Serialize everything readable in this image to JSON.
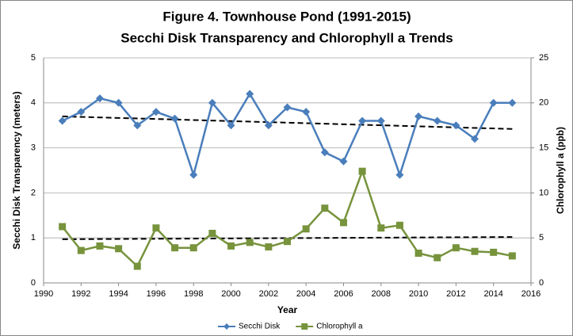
{
  "chart_data": {
    "type": "line",
    "title": [
      "Figure 4. Townhouse Pond (1991-2015)",
      "Secchi Disk Transparency and Chlorophyll a Trends"
    ],
    "x_label": "Year",
    "y_label": "Secchi Disk Transparency (meters)",
    "y2_label": "Chlorophyll a (ppb)",
    "x": [
      1991,
      1992,
      1993,
      1994,
      1995,
      1996,
      1997,
      1998,
      1999,
      2000,
      2001,
      2002,
      2003,
      2004,
      2005,
      2006,
      2007,
      2008,
      2009,
      2010,
      2011,
      2012,
      2013,
      2014,
      2015
    ],
    "series": [
      {
        "name": "Secchi Disk",
        "color": "#4a7ebb",
        "marker": "diamond",
        "axis": "y",
        "values": [
          3.6,
          3.8,
          4.1,
          4.0,
          3.5,
          3.8,
          3.65,
          2.4,
          4.0,
          3.5,
          4.2,
          3.5,
          3.9,
          3.8,
          2.9,
          2.7,
          3.6,
          3.6,
          2.4,
          3.7,
          3.6,
          3.5,
          3.2,
          4.0,
          4.0
        ],
        "trend": [
          3.7,
          3.42
        ]
      },
      {
        "name": "Chlorophyll a",
        "color": "#77933c",
        "marker": "square",
        "axis": "y2",
        "values": [
          6.25,
          3.6,
          4.1,
          3.8,
          1.85,
          6.1,
          3.9,
          3.9,
          5.5,
          4.1,
          4.5,
          4.0,
          4.6,
          6.0,
          8.3,
          6.7,
          12.4,
          6.1,
          6.4,
          3.3,
          2.8,
          3.9,
          3.5,
          3.4,
          3.0
        ],
        "trend": [
          4.85,
          5.1
        ]
      }
    ],
    "xlim": [
      1990,
      2016
    ],
    "xticks": [
      1990,
      1992,
      1994,
      1996,
      1998,
      2000,
      2002,
      2004,
      2006,
      2008,
      2010,
      2012,
      2014,
      2016
    ],
    "ylim": [
      0,
      5
    ],
    "yticks": [
      0,
      1,
      2,
      3,
      4,
      5
    ],
    "y2lim": [
      0,
      25
    ],
    "y2ticks": [
      0,
      5,
      10,
      15,
      20,
      25
    ],
    "grid": true,
    "legend": "bottom"
  }
}
